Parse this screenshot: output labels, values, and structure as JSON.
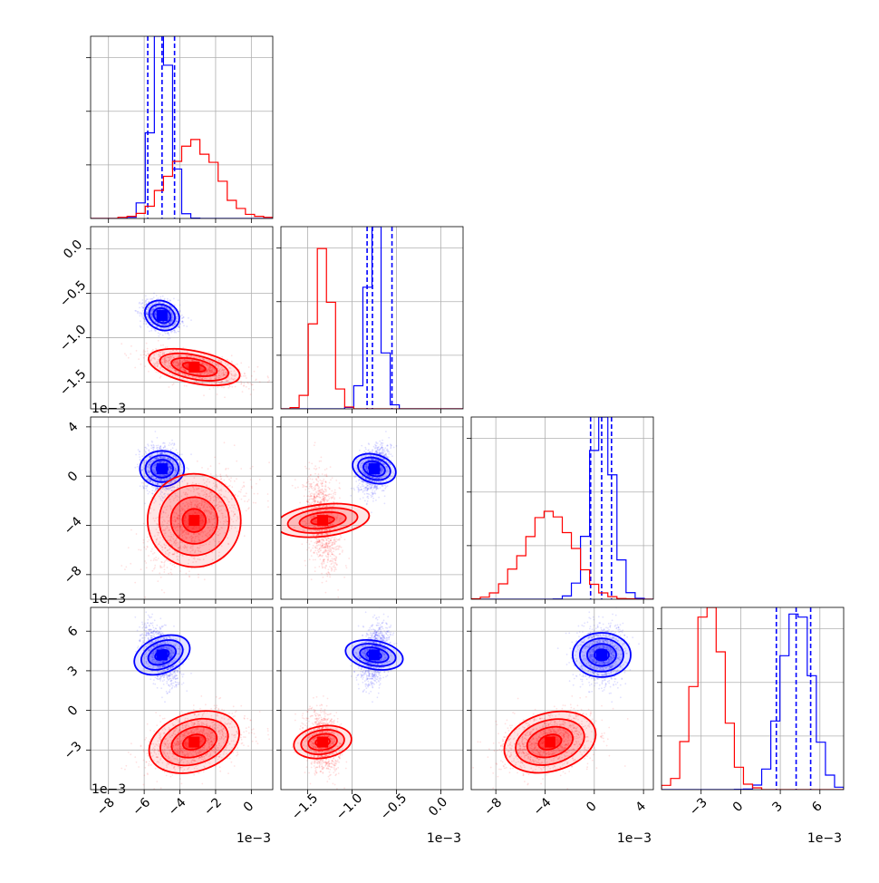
{
  "chart_data": {
    "type": "corner",
    "description": "Corner plot comparing two posterior sample sets (blue and red) over 4 parameters",
    "colors": {
      "blue": "#0000ff",
      "red": "#ff0000"
    },
    "grid": true,
    "parameters": [
      {
        "ticks": [
          -8,
          -6,
          -4,
          -2,
          0
        ],
        "tick_labels": [
          "−8",
          "−6",
          "−4",
          "−2",
          "0"
        ],
        "range": [
          -9.0,
          1.2
        ],
        "scale_label": "1e−3"
      },
      {
        "ticks": [
          -1.5,
          -1.0,
          -0.5,
          0.0
        ],
        "tick_labels": [
          "−1.5",
          "−1.0",
          "−0.5",
          "0.0"
        ],
        "range": [
          -1.8,
          0.25
        ],
        "scale_label": "1e−3"
      },
      {
        "ticks": [
          -8,
          -4,
          0,
          4
        ],
        "tick_labels": [
          "−8",
          "−4",
          "0",
          "4"
        ],
        "range": [
          -10.0,
          4.8
        ],
        "scale_label": "1e−3"
      },
      {
        "ticks": [
          -3,
          0,
          3,
          6
        ],
        "tick_labels": [
          "−3",
          "0",
          "3",
          "6"
        ],
        "range": [
          -6.0,
          7.8
        ],
        "scale_label": "1e−3"
      }
    ],
    "series": [
      {
        "color": "blue",
        "means": [
          -5.0,
          -0.75,
          0.6,
          4.2
        ],
        "sigmas": [
          0.5,
          0.08,
          0.9,
          1.1
        ],
        "quantiles": [
          [
            -5.8,
            -5.0,
            -4.3
          ],
          [
            -0.83,
            -0.77,
            -0.55
          ],
          [
            -0.3,
            0.6,
            1.4
          ],
          [
            2.7,
            4.2,
            5.3
          ]
        ]
      },
      {
        "color": "red",
        "means": [
          -3.2,
          -1.33,
          -3.6,
          -2.4
        ],
        "sigmas": [
          1.3,
          0.09,
          1.9,
          1.1
        ]
      }
    ]
  }
}
